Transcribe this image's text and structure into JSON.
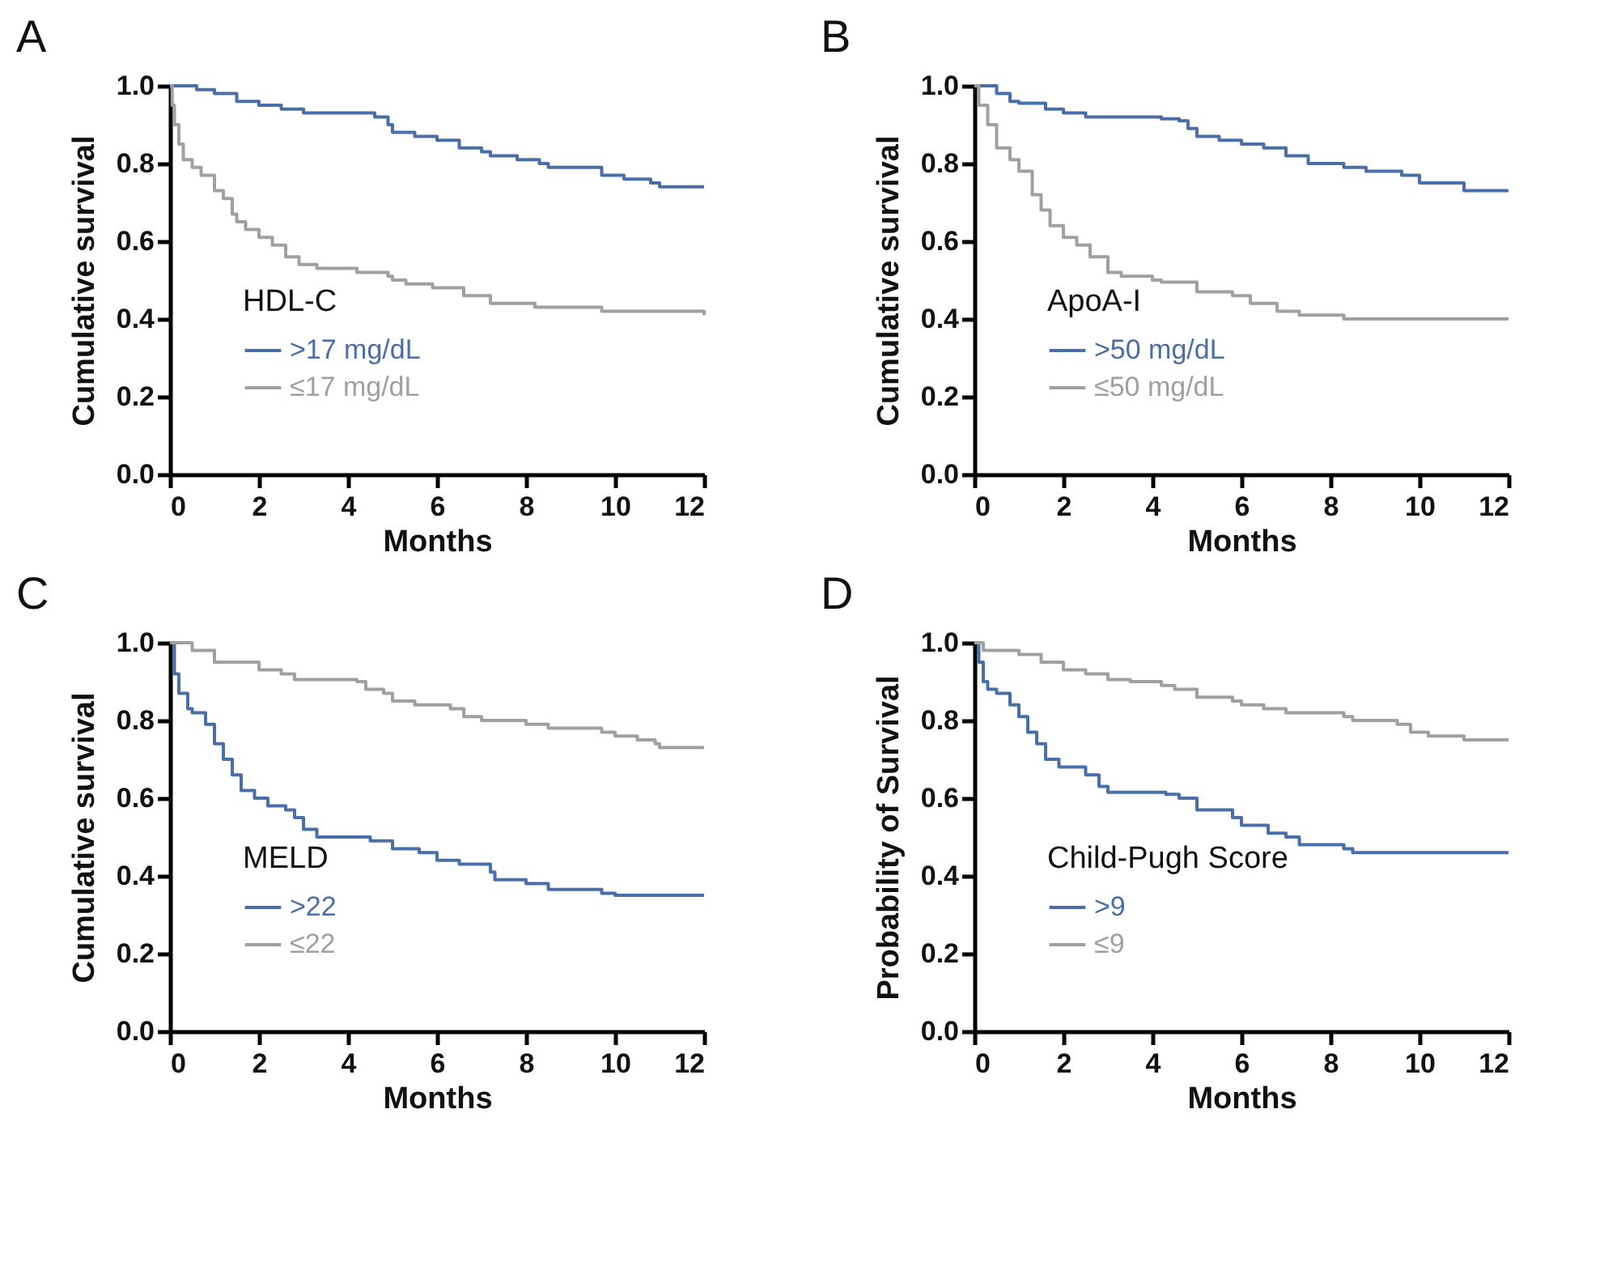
{
  "chart_data": [
    {
      "type": "step",
      "title": "A",
      "xlabel": "Months",
      "ylabel": "Cumulative survival",
      "legend_title": "HDL-C",
      "legend": "bottom left",
      "grid": false,
      "xlim": [
        0,
        12
      ],
      "ylim": [
        0,
        1
      ],
      "xticks": [
        0,
        2,
        4,
        6,
        8,
        10,
        12
      ],
      "yticks": [
        {
          "value": 0,
          "label": "0.0"
        },
        {
          "value": 0.2,
          "label": "0.2"
        },
        {
          "value": 0.4,
          "label": "0.4"
        },
        {
          "value": 0.6,
          "label": "0.6"
        },
        {
          "value": 0.8,
          "label": "0.8"
        },
        {
          "value": 1,
          "label": "1.0"
        }
      ],
      "series": [
        {
          "name": ">17 mg/dL",
          "color": "#4a6fa8",
          "x": [
            0,
            0.5,
            0.6,
            1,
            1.5,
            2,
            2.5,
            3,
            4.2,
            4.6,
            4.9,
            5,
            5.5,
            6,
            6.5,
            7,
            7.2,
            7.8,
            8.3,
            8.5,
            9.5,
            9.7,
            10.2,
            10.8,
            11,
            12
          ],
          "values": [
            1,
            1,
            0.99,
            0.98,
            0.96,
            0.95,
            0.94,
            0.93,
            0.93,
            0.92,
            0.9,
            0.88,
            0.87,
            0.86,
            0.84,
            0.83,
            0.82,
            0.81,
            0.8,
            0.79,
            0.79,
            0.77,
            0.76,
            0.75,
            0.74,
            0.74
          ]
        },
        {
          "name": "≤17 mg/dL",
          "color": "#a0a0a0",
          "x": [
            0,
            0.05,
            0.1,
            0.2,
            0.3,
            0.5,
            0.7,
            1,
            1.2,
            1.4,
            1.5,
            1.7,
            2,
            2.3,
            2.6,
            2.9,
            3.3,
            4.2,
            4.9,
            5,
            5.3,
            5.9,
            6.6,
            7.2,
            8.2,
            9.7,
            12
          ],
          "values": [
            1,
            0.95,
            0.9,
            0.85,
            0.81,
            0.79,
            0.77,
            0.73,
            0.71,
            0.67,
            0.65,
            0.63,
            0.61,
            0.59,
            0.56,
            0.54,
            0.53,
            0.52,
            0.51,
            0.5,
            0.49,
            0.48,
            0.46,
            0.44,
            0.43,
            0.42,
            0.41
          ]
        }
      ]
    },
    {
      "type": "step",
      "title": "B",
      "xlabel": "Months",
      "ylabel": "Cumulative survival",
      "legend_title": "ApoA-I",
      "legend": "bottom left",
      "grid": false,
      "xlim": [
        0,
        12
      ],
      "ylim": [
        0,
        1
      ],
      "xticks": [
        0,
        2,
        4,
        6,
        8,
        10,
        12
      ],
      "yticks": [
        {
          "value": 0,
          "label": "0.0"
        },
        {
          "value": 0.2,
          "label": "0.2"
        },
        {
          "value": 0.4,
          "label": "0.4"
        },
        {
          "value": 0.6,
          "label": "0.6"
        },
        {
          "value": 0.8,
          "label": "0.8"
        },
        {
          "value": 1,
          "label": "1.0"
        }
      ],
      "series": [
        {
          "name": ">50 mg/dL",
          "color": "#4a6fa8",
          "x": [
            0,
            0.5,
            0.8,
            1,
            1.6,
            2,
            2.5,
            4.2,
            4.6,
            4.8,
            5,
            5.5,
            6,
            6.5,
            7,
            7.5,
            8.3,
            8.8,
            9.6,
            10,
            11,
            12
          ],
          "values": [
            1,
            0.98,
            0.96,
            0.955,
            0.94,
            0.93,
            0.92,
            0.915,
            0.91,
            0.89,
            0.87,
            0.86,
            0.85,
            0.84,
            0.82,
            0.8,
            0.79,
            0.78,
            0.77,
            0.75,
            0.73,
            0.73
          ]
        },
        {
          "name": "≤50 mg/dL",
          "color": "#a0a0a0",
          "x": [
            0,
            0.1,
            0.3,
            0.5,
            0.8,
            1,
            1.3,
            1.5,
            1.7,
            2,
            2.3,
            2.6,
            3,
            3.3,
            4,
            4.2,
            5,
            5.8,
            6.2,
            6.8,
            7.3,
            8.3,
            12
          ],
          "values": [
            1,
            0.95,
            0.9,
            0.84,
            0.81,
            0.78,
            0.72,
            0.68,
            0.64,
            0.61,
            0.59,
            0.56,
            0.52,
            0.51,
            0.5,
            0.495,
            0.47,
            0.46,
            0.44,
            0.42,
            0.41,
            0.4,
            0.4
          ]
        }
      ]
    },
    {
      "type": "step",
      "title": "C",
      "xlabel": "Months",
      "ylabel": "Cumulative survival",
      "legend_title": "MELD",
      "legend": "bottom left",
      "grid": false,
      "xlim": [
        0,
        12
      ],
      "ylim": [
        0,
        1
      ],
      "xticks": [
        0,
        2,
        4,
        6,
        8,
        10,
        12
      ],
      "yticks": [
        {
          "value": 0,
          "label": "0.0"
        },
        {
          "value": 0.2,
          "label": "0.2"
        },
        {
          "value": 0.4,
          "label": "0.4"
        },
        {
          "value": 0.6,
          "label": "0.6"
        },
        {
          "value": 0.8,
          "label": "0.8"
        },
        {
          "value": 1,
          "label": "1.0"
        }
      ],
      "series": [
        {
          "name": ">22",
          "color": "#4a6fa8",
          "x": [
            0,
            0.1,
            0.2,
            0.4,
            0.5,
            0.8,
            1,
            1.2,
            1.4,
            1.6,
            1.9,
            2.2,
            2.6,
            2.8,
            3,
            3.3,
            4.5,
            5,
            5.6,
            6,
            6.5,
            7.2,
            7.3,
            8,
            8.5,
            9.7,
            10,
            12
          ],
          "values": [
            1,
            0.92,
            0.87,
            0.83,
            0.82,
            0.79,
            0.74,
            0.7,
            0.66,
            0.62,
            0.6,
            0.58,
            0.57,
            0.55,
            0.52,
            0.5,
            0.49,
            0.47,
            0.46,
            0.44,
            0.43,
            0.41,
            0.39,
            0.38,
            0.365,
            0.355,
            0.35,
            0.35
          ]
        },
        {
          "name": "≤22",
          "color": "#a0a0a0",
          "x": [
            0,
            0.5,
            1,
            1.5,
            2,
            2.5,
            2.8,
            4.2,
            4.4,
            4.8,
            5,
            5.5,
            6.3,
            6.6,
            7,
            8,
            8.5,
            9.7,
            10,
            10.5,
            10.9,
            11,
            12
          ],
          "values": [
            1,
            0.98,
            0.95,
            0.95,
            0.93,
            0.92,
            0.905,
            0.9,
            0.88,
            0.87,
            0.85,
            0.84,
            0.83,
            0.81,
            0.8,
            0.79,
            0.78,
            0.77,
            0.76,
            0.75,
            0.74,
            0.73,
            0.73
          ]
        }
      ]
    },
    {
      "type": "step",
      "title": "D",
      "xlabel": "Months",
      "ylabel": "Probability of Survival",
      "legend_title": "Child-Pugh Score",
      "legend": "bottom left",
      "grid": false,
      "xlim": [
        0,
        12
      ],
      "ylim": [
        0,
        1
      ],
      "xticks": [
        0,
        2,
        4,
        6,
        8,
        10,
        12
      ],
      "yticks": [
        {
          "value": 0,
          "label": "0.0"
        },
        {
          "value": 0.2,
          "label": "0.2"
        },
        {
          "value": 0.4,
          "label": "0.4"
        },
        {
          "value": 0.6,
          "label": "0.6"
        },
        {
          "value": 0.8,
          "label": "0.8"
        },
        {
          "value": 1,
          "label": "1.0"
        }
      ],
      "series": [
        {
          "name": ">9",
          "color": "#4a6fa8",
          "x": [
            0,
            0.1,
            0.2,
            0.3,
            0.5,
            0.8,
            1,
            1.2,
            1.4,
            1.6,
            1.9,
            2.5,
            2.8,
            3,
            4.3,
            4.6,
            5,
            5.8,
            6,
            6.6,
            7,
            7.3,
            8.3,
            8.5,
            12
          ],
          "values": [
            1,
            0.95,
            0.9,
            0.88,
            0.87,
            0.84,
            0.81,
            0.77,
            0.74,
            0.7,
            0.68,
            0.66,
            0.63,
            0.615,
            0.61,
            0.6,
            0.57,
            0.55,
            0.53,
            0.51,
            0.5,
            0.48,
            0.47,
            0.46,
            0.46
          ]
        },
        {
          "name": "≤9",
          "color": "#a0a0a0",
          "x": [
            0,
            0.2,
            1,
            1.5,
            2,
            2.5,
            3,
            3.5,
            4.2,
            4.5,
            5,
            5.8,
            6,
            6.5,
            7,
            8.3,
            8.5,
            9.5,
            9.8,
            10.2,
            11,
            12
          ],
          "values": [
            1,
            0.98,
            0.97,
            0.95,
            0.93,
            0.92,
            0.905,
            0.9,
            0.89,
            0.88,
            0.86,
            0.85,
            0.84,
            0.83,
            0.82,
            0.81,
            0.8,
            0.79,
            0.77,
            0.76,
            0.75,
            0.75
          ]
        }
      ]
    }
  ]
}
